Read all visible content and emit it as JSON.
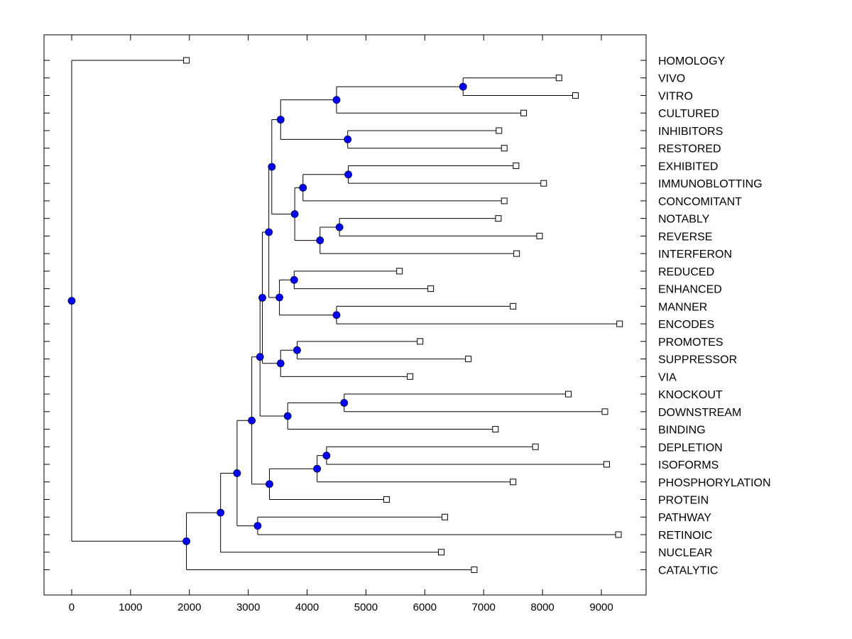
{
  "chart_data": {
    "type": "dendrogram",
    "orientation": "horizontal",
    "xlim": [
      -470,
      9760
    ],
    "x_ticks": [
      0,
      1000,
      2000,
      3000,
      4000,
      5000,
      6000,
      7000,
      8000,
      9000
    ],
    "leaf_marker_color": "#ffffff",
    "node_marker_color": "#0000ff",
    "line_color": "#000000",
    "leaves": [
      {
        "label": "HOMOLOGY",
        "value": 1950
      },
      {
        "label": "VIVO",
        "value": 8280
      },
      {
        "label": "VITRO",
        "value": 8560
      },
      {
        "label": "CULTURED",
        "value": 7680
      },
      {
        "label": "INHIBITORS",
        "value": 7260
      },
      {
        "label": "RESTORED",
        "value": 7350
      },
      {
        "label": "EXHIBITED",
        "value": 7550
      },
      {
        "label": "IMMUNOBLOTTING",
        "value": 8020
      },
      {
        "label": "CONCOMITANT",
        "value": 7350
      },
      {
        "label": "NOTABLY",
        "value": 7250
      },
      {
        "label": "REVERSE",
        "value": 7950
      },
      {
        "label": "INTERFERON",
        "value": 7560
      },
      {
        "label": "REDUCED",
        "value": 5570
      },
      {
        "label": "ENHANCED",
        "value": 6100
      },
      {
        "label": "MANNER",
        "value": 7500
      },
      {
        "label": "ENCODES",
        "value": 9310
      },
      {
        "label": "PROMOTES",
        "value": 5920
      },
      {
        "label": "SUPPRESSOR",
        "value": 6740
      },
      {
        "label": "VIA",
        "value": 5750
      },
      {
        "label": "KNOCKOUT",
        "value": 8440
      },
      {
        "label": "DOWNSTREAM",
        "value": 9060
      },
      {
        "label": "BINDING",
        "value": 7200
      },
      {
        "label": "DEPLETION",
        "value": 7880
      },
      {
        "label": "ISOFORMS",
        "value": 9090
      },
      {
        "label": "PHOSPHORYLATION",
        "value": 7500
      },
      {
        "label": "PROTEIN",
        "value": 5350
      },
      {
        "label": "PATHWAY",
        "value": 6340
      },
      {
        "label": "RETINOIC",
        "value": 9290
      },
      {
        "label": "NUCLEAR",
        "value": 6280
      },
      {
        "label": "CATALYTIC",
        "value": 6840
      }
    ],
    "merges": [
      {
        "id": "m1",
        "height": 6650,
        "children": [
          "VIVO",
          "VITRO"
        ]
      },
      {
        "id": "m2",
        "height": 4500,
        "children": [
          "m1",
          "CULTURED"
        ]
      },
      {
        "id": "m3",
        "height": 4690,
        "children": [
          "INHIBITORS",
          "RESTORED"
        ]
      },
      {
        "id": "m4",
        "height": 3550,
        "children": [
          "m2",
          "m3"
        ]
      },
      {
        "id": "m5",
        "height": 4700,
        "children": [
          "EXHIBITED",
          "IMMUNOBLOTTING"
        ]
      },
      {
        "id": "m6",
        "height": 3930,
        "children": [
          "m5",
          "CONCOMITANT"
        ]
      },
      {
        "id": "m7",
        "height": 4550,
        "children": [
          "NOTABLY",
          "REVERSE"
        ]
      },
      {
        "id": "m8",
        "height": 4220,
        "children": [
          "m7",
          "INTERFERON"
        ]
      },
      {
        "id": "m9",
        "height": 3790,
        "children": [
          "m6",
          "m8"
        ]
      },
      {
        "id": "m10",
        "height": 3400,
        "children": [
          "m4",
          "m9"
        ]
      },
      {
        "id": "m11",
        "height": 3780,
        "children": [
          "REDUCED",
          "ENHANCED"
        ]
      },
      {
        "id": "m12",
        "height": 4500,
        "children": [
          "MANNER",
          "ENCODES"
        ]
      },
      {
        "id": "m13",
        "height": 3530,
        "children": [
          "m11",
          "m12"
        ]
      },
      {
        "id": "m14",
        "height": 3350,
        "children": [
          "m10",
          "m13"
        ]
      },
      {
        "id": "m15",
        "height": 3830,
        "children": [
          "PROMOTES",
          "SUPPRESSOR"
        ]
      },
      {
        "id": "m16",
        "height": 3550,
        "children": [
          "m15",
          "VIA"
        ]
      },
      {
        "id": "m17",
        "height": 3240,
        "children": [
          "m14",
          "m16"
        ]
      },
      {
        "id": "m18",
        "height": 4630,
        "children": [
          "KNOCKOUT",
          "DOWNSTREAM"
        ]
      },
      {
        "id": "m19",
        "height": 3670,
        "children": [
          "m18",
          "BINDING"
        ]
      },
      {
        "id": "m20",
        "height": 3200,
        "children": [
          "m17",
          "m19"
        ]
      },
      {
        "id": "m21",
        "height": 4330,
        "children": [
          "DEPLETION",
          "ISOFORMS"
        ]
      },
      {
        "id": "m22",
        "height": 4170,
        "children": [
          "m21",
          "PHOSPHORYLATION"
        ]
      },
      {
        "id": "m23",
        "height": 3360,
        "children": [
          "m22",
          "PROTEIN"
        ]
      },
      {
        "id": "m24",
        "height": 3060,
        "children": [
          "m20",
          "m23"
        ]
      },
      {
        "id": "m25",
        "height": 3160,
        "children": [
          "PATHWAY",
          "RETINOIC"
        ]
      },
      {
        "id": "m26",
        "height": 2810,
        "children": [
          "m24",
          "m25"
        ]
      },
      {
        "id": "m27",
        "height": 2530,
        "children": [
          "m26",
          "NUCLEAR"
        ]
      },
      {
        "id": "m28",
        "height": 1950,
        "children": [
          "m27",
          "CATALYTIC"
        ]
      },
      {
        "id": "m29",
        "height": 0,
        "children": [
          "HOMOLOGY",
          "m28"
        ]
      }
    ]
  }
}
